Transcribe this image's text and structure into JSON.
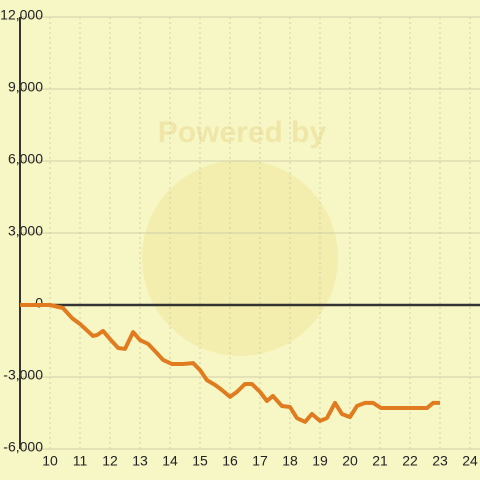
{
  "chart_data": {
    "type": "line",
    "watermark": "Powered by",
    "x": [
      9,
      10,
      10.43,
      10.73,
      11,
      11.43,
      11.57,
      11.77,
      12,
      12.27,
      12.5,
      12.77,
      13,
      13.27,
      13.5,
      13.77,
      14.07,
      14.43,
      14.77,
      15,
      15.23,
      15.5,
      15.73,
      16,
      16.23,
      16.5,
      16.73,
      17,
      17.23,
      17.43,
      17.73,
      18,
      18.23,
      18.5,
      18.73,
      19,
      19.23,
      19.5,
      19.73,
      20,
      20.23,
      20.5,
      20.77,
      21.03,
      22.57,
      22.77,
      23
    ],
    "series": [
      {
        "color": "#e07b1f",
        "values": [
          0,
          0,
          -125,
          -540,
          -790,
          -1290,
          -1250,
          -1080,
          -1420,
          -1790,
          -1830,
          -1130,
          -1460,
          -1620,
          -1920,
          -2290,
          -2460,
          -2460,
          -2420,
          -2710,
          -3130,
          -3330,
          -3540,
          -3830,
          -3620,
          -3290,
          -3290,
          -3620,
          -4000,
          -3790,
          -4210,
          -4250,
          -4710,
          -4870,
          -4540,
          -4830,
          -4710,
          -4080,
          -4540,
          -4670,
          -4210,
          -4080,
          -4080,
          -4290,
          -4290,
          -4080,
          -4080
        ]
      }
    ],
    "xlim": [
      9,
      24
    ],
    "xticks": [
      10,
      11,
      12,
      13,
      14,
      15,
      16,
      17,
      18,
      19,
      20,
      21,
      22,
      23,
      24
    ],
    "ylim": [
      -6000,
      12000
    ],
    "yticks": [
      {
        "value": -6000,
        "label": "-6,000"
      },
      {
        "value": -3000,
        "label": "-3,000"
      },
      0,
      {
        "value": 3000,
        "label": "3,000"
      },
      {
        "value": 6000,
        "label": "6,000"
      },
      {
        "value": 9000,
        "label": "9,000"
      },
      {
        "value": 12000,
        "label": "12,000"
      }
    ],
    "grid": true
  }
}
